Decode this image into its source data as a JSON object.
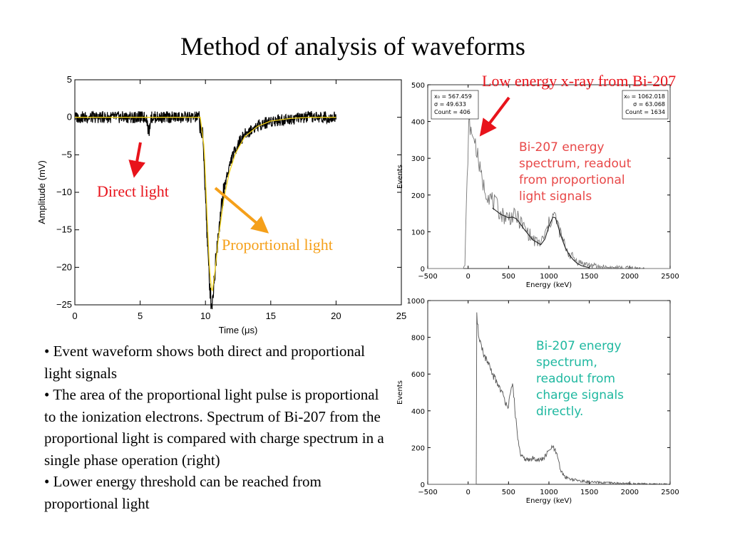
{
  "slide": {
    "title": "Method of analysis of waveforms",
    "bullets": [
      "• Event waveform shows both direct and proportional light signals",
      "• The area of the proportional light pulse is proportional to the ionization electrons. Spectrum of Bi-207 from the proportional light is compared with charge spectrum in a single phase operation (right)",
      "• Lower energy threshold can be reached from proportional light"
    ]
  },
  "annotations": {
    "direct_light": "Direct light",
    "proportional_light": "Proportional light",
    "low_energy_xray": "Low energy x-ray from Bi-207",
    "prop_spectrum_note": [
      "Bi-207 energy",
      "spectrum, readout",
      "from proportional",
      "light signals"
    ],
    "charge_spectrum_note": [
      "Bi-207 energy",
      "spectrum,",
      "readout from",
      "charge signals",
      "directly."
    ]
  },
  "colors": {
    "red": "#e8131b",
    "orange": "#f5a01a",
    "proportional_note": "#e84848",
    "charge_note": "#1fb8a0",
    "fit_yellow": "#f2d21b"
  },
  "chart_data": [
    {
      "type": "line",
      "xlabel": "Time (μs)",
      "ylabel": "Amplitude (mV)",
      "xlim": [
        0,
        25
      ],
      "ylim": [
        -25,
        5
      ],
      "xticks": [
        "0",
        "5",
        "10",
        "15",
        "20",
        "25"
      ],
      "yticks": [
        "5",
        "0",
        "−5",
        "−10",
        "−15",
        "−20",
        "−25"
      ],
      "series": [
        {
          "x": [
            0,
            5.5,
            5.6,
            5.7,
            5.8,
            9.5,
            9.8,
            10.0,
            10.2,
            10.4,
            10.5,
            10.6,
            10.8,
            11.0,
            11.3,
            11.6,
            12.0,
            12.5,
            13.0,
            14.0,
            15.0,
            16.5,
            18.0,
            20.0
          ],
          "y": [
            0,
            0,
            -1.5,
            -2.0,
            0,
            0,
            -3,
            -10,
            -19,
            -24,
            -25,
            -23,
            -19,
            -15,
            -11,
            -8,
            -5.5,
            -3.5,
            -2.3,
            -1.1,
            -0.5,
            -0.2,
            0,
            0
          ]
        },
        {
          "x": [
            0,
            9.6,
            9.9,
            10.1,
            10.3,
            10.5,
            10.7,
            11.0,
            11.4,
            11.8,
            12.3,
            13.0,
            14.0,
            15.0,
            16.5,
            18.0,
            20.0
          ],
          "y": [
            0,
            0,
            -4,
            -12,
            -20,
            -23.5,
            -21,
            -16,
            -11,
            -7.5,
            -4.8,
            -2.6,
            -1.2,
            -0.5,
            -0.15,
            0,
            0
          ]
        }
      ]
    },
    {
      "type": "line",
      "xlabel": "Energy (keV)",
      "ylabel": "Events",
      "xlim": [
        -500,
        2500
      ],
      "ylim": [
        0,
        500
      ],
      "xticks": [
        "−500",
        "0",
        "500",
        "1000",
        "1500",
        "2000",
        "2500"
      ],
      "yticks": [
        "0",
        "100",
        "200",
        "300",
        "400",
        "500"
      ],
      "stats": [
        [
          "x₀ = 567.459",
          "σ = 49.633",
          "Count = 406"
        ],
        [
          "x₀ = 1062.018",
          "σ = 63.068",
          "Count = 1634"
        ]
      ],
      "series": [
        {
          "x": [
            -500,
            -60,
            -40,
            -20,
            0,
            10,
            30,
            50,
            70,
            100,
            130,
            160,
            200,
            250,
            300,
            350,
            400,
            450,
            500,
            550,
            600,
            650,
            700,
            750,
            800,
            850,
            900,
            950,
            1000,
            1050,
            1080,
            1100,
            1150,
            1200,
            1250,
            1300,
            1350,
            1400,
            1500,
            1600,
            1800,
            2000,
            2200,
            2400,
            2500
          ],
          "y": [
            0,
            0,
            10,
            180,
            330,
            410,
            380,
            350,
            365,
            330,
            290,
            250,
            220,
            200,
            185,
            170,
            150,
            142,
            140,
            142,
            140,
            125,
            110,
            95,
            80,
            70,
            70,
            90,
            120,
            145,
            140,
            125,
            90,
            60,
            40,
            30,
            20,
            15,
            10,
            5,
            2,
            1,
            0,
            0,
            0
          ]
        },
        {
          "x": [
            300,
            400,
            500,
            550,
            600,
            700,
            800,
            900,
            950,
            1000,
            1050,
            1080,
            1100,
            1150,
            1200,
            1250,
            1300,
            1350,
            1400,
            1500
          ],
          "y": [
            165,
            148,
            138,
            140,
            135,
            105,
            78,
            65,
            80,
            115,
            140,
            138,
            125,
            88,
            58,
            38,
            24,
            14,
            8,
            2
          ]
        }
      ]
    },
    {
      "type": "line",
      "xlabel": "Energy (keV)",
      "ylabel": "Events",
      "xlim": [
        -500,
        2500
      ],
      "ylim": [
        0,
        1000
      ],
      "xticks": [
        "−500",
        "0",
        "500",
        "1000",
        "1500",
        "2000",
        "2500"
      ],
      "yticks": [
        "0",
        "200",
        "400",
        "600",
        "800",
        "1000"
      ],
      "series": [
        {
          "x": [
            -500,
            100,
            100,
            110,
            130,
            160,
            200,
            250,
            300,
            350,
            400,
            450,
            500,
            530,
            550,
            570,
            600,
            650,
            700,
            750,
            800,
            850,
            900,
            950,
            1000,
            1030,
            1060,
            1090,
            1120,
            1150,
            1200,
            1300,
            1400,
            1500,
            1700,
            1900,
            2100,
            2300,
            2500
          ],
          "y": [
            0,
            0,
            980,
            890,
            820,
            760,
            700,
            650,
            600,
            560,
            520,
            460,
            430,
            500,
            540,
            470,
            300,
            150,
            140,
            130,
            140,
            140,
            130,
            150,
            180,
            200,
            195,
            170,
            120,
            70,
            40,
            25,
            18,
            12,
            8,
            5,
            3,
            2,
            1
          ]
        }
      ]
    }
  ]
}
